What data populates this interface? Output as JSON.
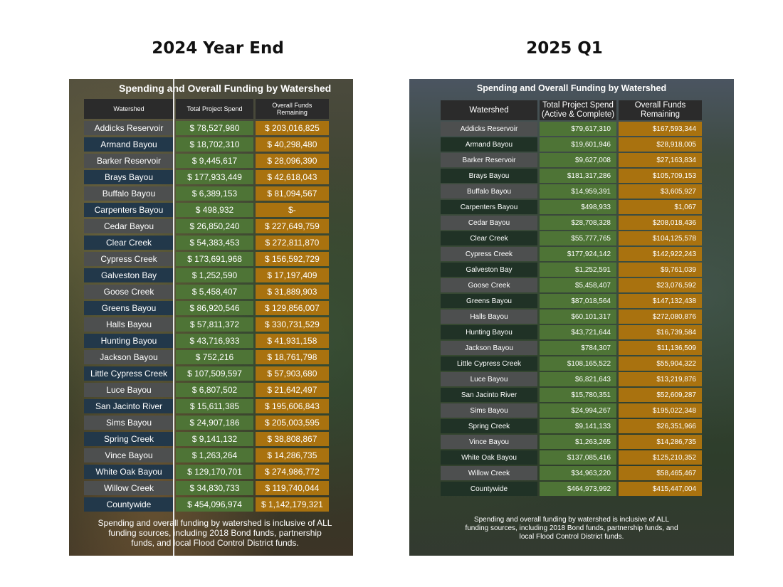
{
  "left": {
    "heading": "2024 Year End",
    "title": "Spending and Overall Funding by Watershed",
    "headers": [
      "Watershed",
      "Total Project Spend",
      "Overall Funds Remaining"
    ],
    "rows": [
      [
        "Addicks Reservoir",
        "$ 78,527,980",
        "$ 203,016,825"
      ],
      [
        "Armand Bayou",
        "$ 18,702,310",
        "$ 40,298,480"
      ],
      [
        "Barker Reservoir",
        "$ 9,445,617",
        "$ 28,096,390"
      ],
      [
        "Brays Bayou",
        "$ 177,933,449",
        "$ 42,618,043"
      ],
      [
        "Buffalo Bayou",
        "$ 6,389,153",
        "$ 81,094,567"
      ],
      [
        "Carpenters Bayou",
        "$ 498,932",
        "$-"
      ],
      [
        "Cedar Bayou",
        "$ 26,850,240",
        "$ 227,649,759"
      ],
      [
        "Clear Creek",
        "$ 54,383,453",
        "$ 272,811,870"
      ],
      [
        "Cypress Creek",
        "$ 173,691,968",
        "$ 156,592,729"
      ],
      [
        "Galveston Bay",
        "$ 1,252,590",
        "$ 17,197,409"
      ],
      [
        "Goose Creek",
        "$ 5,458,407",
        "$ 31,889,903"
      ],
      [
        "Greens Bayou",
        "$ 86,920,546",
        "$ 129,856,007"
      ],
      [
        "Halls Bayou",
        "$ 57,811,372",
        "$ 330,731,529"
      ],
      [
        "Hunting Bayou",
        "$ 43,716,933",
        "$ 41,931,158"
      ],
      [
        "Jackson Bayou",
        "$ 752,216",
        "$ 18,761,798"
      ],
      [
        "Little Cypress Creek",
        "$ 107,509,597",
        "$ 57,903,680"
      ],
      [
        "Luce Bayou",
        "$ 6,807,502",
        "$ 21,642,497"
      ],
      [
        "San Jacinto River",
        "$ 15,611,385",
        "$ 195,606,843"
      ],
      [
        "Sims Bayou",
        "$ 24,907,186",
        "$ 205,003,595"
      ],
      [
        "Spring Creek",
        "$ 9,141,132",
        "$ 38,808,867"
      ],
      [
        "Vince Bayou",
        "$ 1,263,264",
        "$ 14,286,735"
      ],
      [
        "White Oak Bayou",
        "$ 129,170,701",
        "$ 274,986,772"
      ],
      [
        "Willow Creek",
        "$ 34,830,733",
        "$ 119,740,044"
      ],
      [
        "Countywide",
        "$ 454,096,974",
        "$ 1,142,179,321"
      ]
    ],
    "footnote": "Spending and overall funding by watershed is inclusive of ALL funding sources, including 2018 Bond funds, partnership funds, and local Flood Control District funds."
  },
  "right": {
    "heading": "2025 Q1",
    "title": "Spending and Overall Funding by Watershed",
    "headers": [
      "Watershed",
      "Total Project Spend (Active & Complete)",
      "Overall Funds Remaining"
    ],
    "rows": [
      [
        "Addicks Reservoir",
        "$79,617,310",
        "$167,593,344"
      ],
      [
        "Armand Bayou",
        "$19,601,946",
        "$28,918,005"
      ],
      [
        "Barker Reservoir",
        "$9,627,008",
        "$27,163,834"
      ],
      [
        "Brays Bayou",
        "$181,317,286",
        "$105,709,153"
      ],
      [
        "Buffalo Bayou",
        "$14,959,391",
        "$3,605,927"
      ],
      [
        "Carpenters Bayou",
        "$498,933",
        "$1,067"
      ],
      [
        "Cedar Bayou",
        "$28,708,328",
        "$208,018,436"
      ],
      [
        "Clear Creek",
        "$55,777,765",
        "$104,125,578"
      ],
      [
        "Cypress Creek",
        "$177,924,142",
        "$142,922,243"
      ],
      [
        "Galveston Bay",
        "$1,252,591",
        "$9,761,039"
      ],
      [
        "Goose Creek",
        "$5,458,407",
        "$23,076,592"
      ],
      [
        "Greens Bayou",
        "$87,018,564",
        "$147,132,438"
      ],
      [
        "Halls Bayou",
        "$60,101,317",
        "$272,080,876"
      ],
      [
        "Hunting Bayou",
        "$43,721,644",
        "$16,739,584"
      ],
      [
        "Jackson Bayou",
        "$784,307",
        "$11,136,509"
      ],
      [
        "Little Cypress Creek",
        "$108,165,522",
        "$55,904,322"
      ],
      [
        "Luce Bayou",
        "$6,821,643",
        "$13,219,876"
      ],
      [
        "San Jacinto River",
        "$15,780,351",
        "$52,609,287"
      ],
      [
        "Sims Bayou",
        "$24,994,267",
        "$195,022,348"
      ],
      [
        "Spring Creek",
        "$9,141,133",
        "$26,351,966"
      ],
      [
        "Vince Bayou",
        "$1,263,265",
        "$14,286,735"
      ],
      [
        "White Oak Bayou",
        "$137,085,416",
        "$125,210,352"
      ],
      [
        "Willow Creek",
        "$34,963,220",
        "$58,465,467"
      ],
      [
        "Countywide",
        "$464,973,992",
        "$415,447,004"
      ]
    ],
    "footnote": "Spending and overall funding by watershed is inclusive of ALL funding sources, including 2018 Bond funds, partnership funds, and local Flood Control District funds."
  }
}
